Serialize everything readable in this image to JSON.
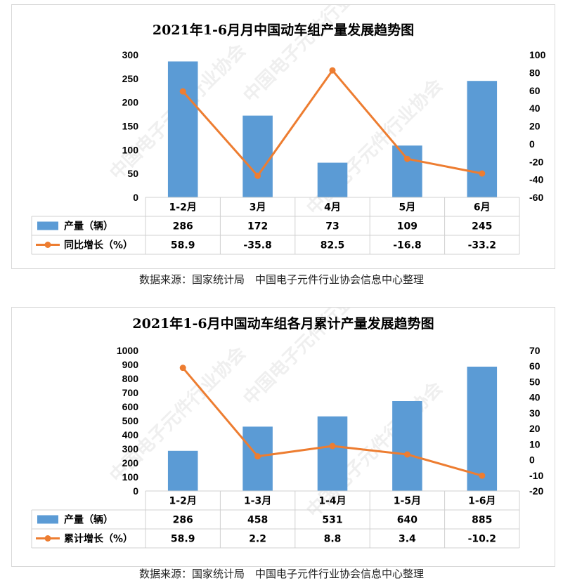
{
  "chart_data": [
    {
      "type": "bar+line",
      "title": "2021年1-6月月中国动车组产量发展趋势图",
      "categories": [
        "1-2月",
        "3月",
        "4月",
        "5月",
        "6月"
      ],
      "series": [
        {
          "name": "产量（辆）",
          "type": "bar",
          "axis": "left",
          "values": [
            286,
            172,
            73,
            109,
            245
          ],
          "labels": [
            "286",
            "172",
            "73",
            "109",
            "245"
          ]
        },
        {
          "name": "同比增长（%）",
          "type": "line",
          "axis": "right",
          "values": [
            58.9,
            -35.8,
            82.5,
            -16.8,
            -33.2
          ],
          "labels": [
            "58.9",
            "-35.8",
            "82.5",
            "-16.8",
            "-33.2"
          ]
        }
      ],
      "y_left": {
        "ylim": [
          0,
          300
        ],
        "ticks": [
          0,
          50,
          100,
          150,
          200,
          250,
          300
        ]
      },
      "y_right": {
        "ylim": [
          -60,
          100
        ],
        "ticks": [
          -60,
          -40,
          -20,
          0,
          20,
          40,
          60,
          80,
          100
        ]
      },
      "grid": false,
      "legend": "data-table"
    },
    {
      "type": "bar+line",
      "title": "2021年1-6月中国动车组各月累计产量发展趋势图",
      "categories": [
        "1-2月",
        "1-3月",
        "1-4月",
        "1-5月",
        "1-6月"
      ],
      "series": [
        {
          "name": "产量（辆）",
          "type": "bar",
          "axis": "left",
          "values": [
            286,
            458,
            531,
            640,
            885
          ],
          "labels": [
            "286",
            "458",
            "531",
            "640",
            "885"
          ]
        },
        {
          "name": "累计增长（%）",
          "type": "line",
          "axis": "right",
          "values": [
            58.9,
            2.2,
            8.8,
            3.4,
            -10.2
          ],
          "labels": [
            "58.9",
            "2.2",
            "8.8",
            "3.4",
            "-10.2"
          ]
        }
      ],
      "y_left": {
        "ylim": [
          0,
          1000
        ],
        "ticks": [
          0,
          100,
          200,
          300,
          400,
          500,
          600,
          700,
          800,
          900,
          1000
        ]
      },
      "y_right": {
        "ylim": [
          -20,
          70
        ],
        "ticks": [
          -20,
          -10,
          0,
          10,
          20,
          30,
          40,
          50,
          60,
          70
        ]
      },
      "grid": false,
      "legend": "data-table"
    }
  ],
  "colors": {
    "bar": "#5b9bd5",
    "line": "#ed7d31",
    "watermark": "#e2e2e2"
  },
  "source_text": [
    "数据来源：国家统计局　中国电子元件行业协会信息中心整理",
    "数据来源：国家统计局　中国电子元件行业协会信息中心整理"
  ],
  "watermark": {
    "text": "中国电子元件行业协会",
    "icon": "ceca-logo-icon"
  }
}
